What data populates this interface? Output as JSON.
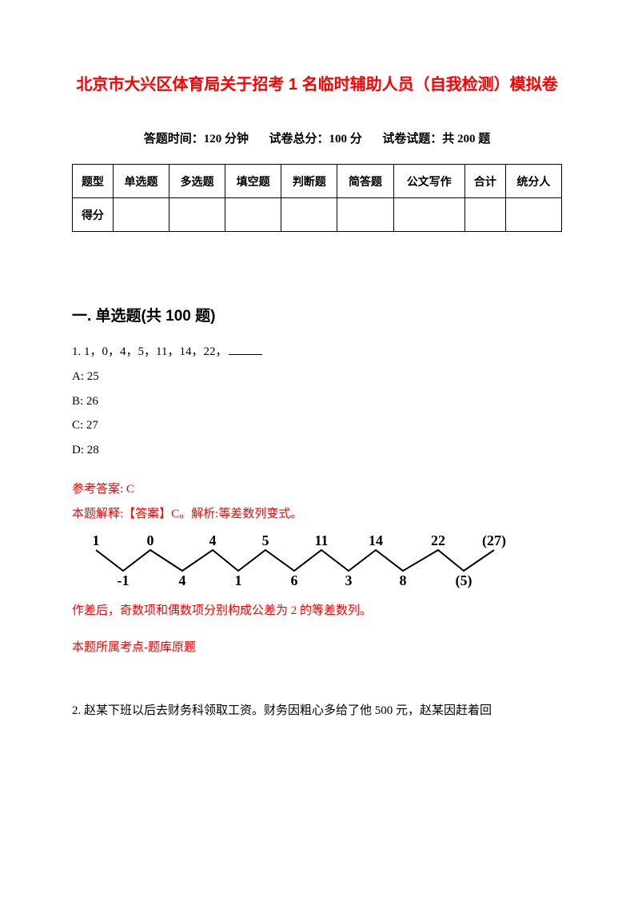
{
  "title": "北京市大兴区体育局关于招考 1 名临时辅助人员（自我检测）模拟卷",
  "meta": {
    "time_label": "答题时间：",
    "time_value": "120 分钟",
    "total_label": "试卷总分：",
    "total_value": "100 分",
    "count_label": "试卷试题：",
    "count_value": "共 200 题"
  },
  "score_table": {
    "headers": [
      "题型",
      "单选题",
      "多选题",
      "填空题",
      "判断题",
      "简答题",
      "公文写作",
      "合计",
      "统分人"
    ],
    "row_label": "得分"
  },
  "section1": {
    "heading": "一. 单选题(共 100 题)",
    "q1": {
      "stem": "1. 1，0，4，5，11，14，22，",
      "options": {
        "A": "A: 25",
        "B": "B: 26",
        "C": "C: 27",
        "D": "D: 28"
      },
      "answer_label": "参考答案: C",
      "explain": "本题解释:【答案】C。解析:等差数列变式。",
      "zigzag": {
        "top": [
          "1",
          "0",
          "4",
          "5",
          "11",
          "14",
          "22",
          "(27)"
        ],
        "bottom": [
          "-1",
          "4",
          "1",
          "6",
          "3",
          "8",
          "(5)"
        ],
        "top_x": [
          20,
          88,
          166,
          232,
          302,
          370,
          448,
          518
        ],
        "bottom_x": [
          54,
          128,
          198,
          268,
          336,
          404,
          480
        ],
        "stroke": "#000000",
        "font_size": 18
      },
      "after_diagram": "作差后，奇数项和偶数项分别构成公差为 2 的等差数列。",
      "topic": "本题所属考点-题库原题"
    },
    "q2": {
      "text": "2. 赵某下班以后去财务科领取工资。财务因粗心多给了他 500 元，赵某因赶着回"
    }
  }
}
